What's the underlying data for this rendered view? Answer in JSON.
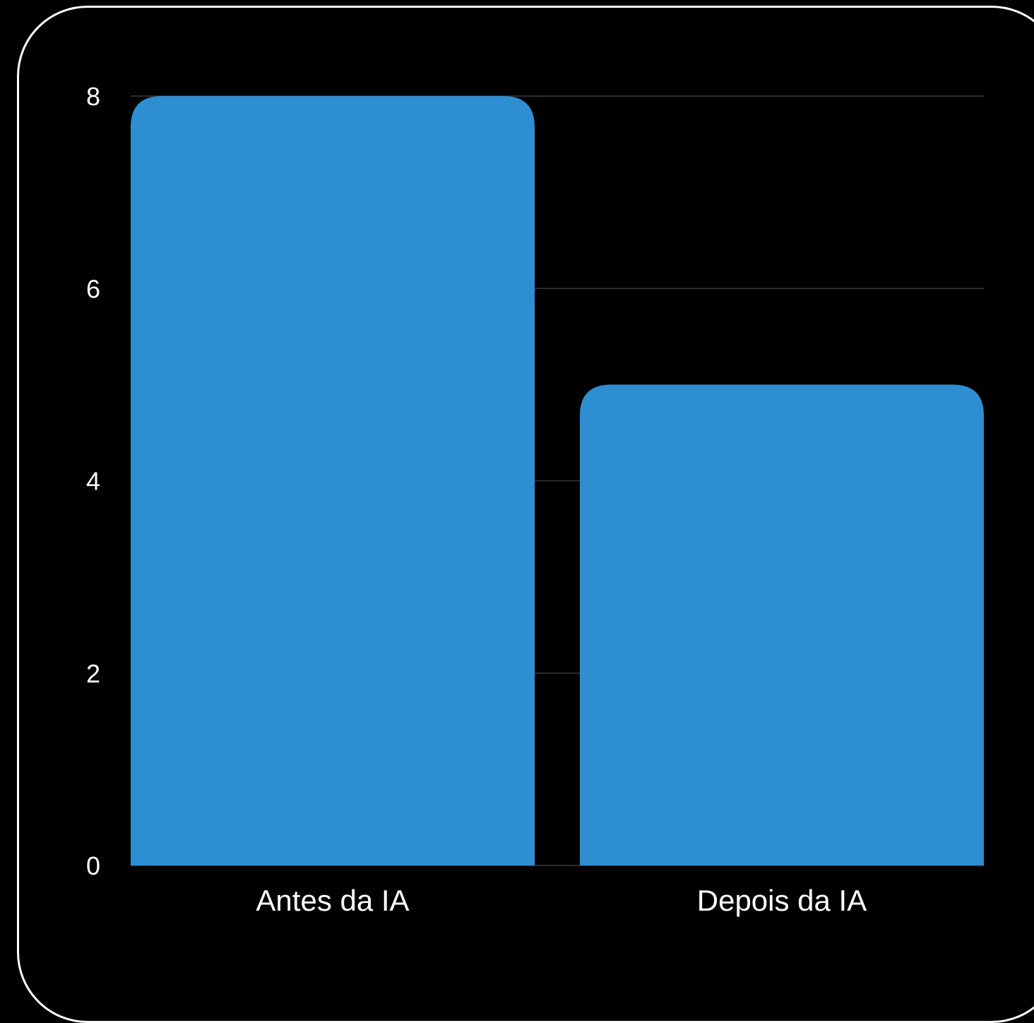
{
  "chart_data": {
    "type": "bar",
    "categories": [
      "Antes da IA",
      "Depois da IA"
    ],
    "values": [
      8,
      5
    ],
    "title": "",
    "xlabel": "",
    "ylabel": "",
    "ylim": [
      0,
      8
    ],
    "yticks": [
      0,
      2,
      4,
      6,
      8
    ],
    "grid": true,
    "legend": "none",
    "colors": {
      "background": "#000000",
      "bar": "#2e8ed2",
      "grid": "#3a3a3a",
      "text": "#ffffff",
      "frame": "#ffffff"
    }
  }
}
